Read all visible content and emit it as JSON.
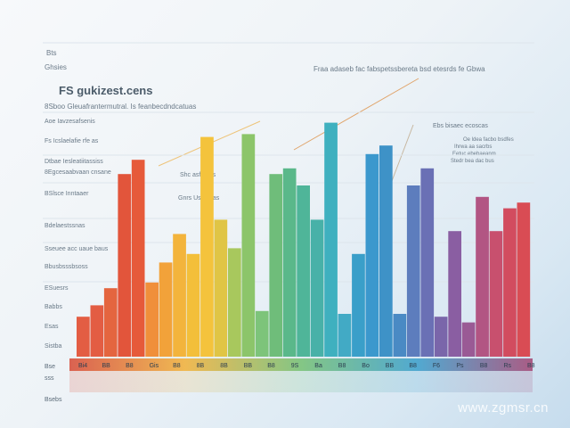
{
  "header": {
    "top_small": "Bts",
    "top_sub": "Ghsies",
    "title": "FS gukizest.cens",
    "subtitle": "8Sboo  Gleuafrantermutral. Is  feanbecdndcatuas",
    "right_line": "Fraa adaseb fac fabspetssbereta bsd etesrds fe Gbwa",
    "callout": [
      "Ebs bisaec ecoscas",
      "Oe ldea facbo bsdfes",
      "Ihrwa aa sacrbs",
      "Eetuc ebebaeanm",
      "Stedr bea dac bus"
    ],
    "mid_annot": [
      "Shc asfo sas",
      "Gnrs Usdtesas"
    ]
  },
  "legend_left": [
    "Aoe Iavzesafsenis",
    "Fs Icslaelafie rfe as",
    "Dtbae Iesleatiitassiss",
    "8Egcesaabvaan cnsane",
    "BSlsce Inntaaer",
    "Bdelaestssnas",
    "Sseuee acc uaue baus",
    "Bbusbsssbsoss",
    "ESuesrs",
    "Babbs",
    "Esas",
    "Sistba"
  ],
  "axis_small": [
    "Bse",
    "sss",
    "Bsebs"
  ],
  "chart_data": {
    "type": "bar",
    "categories": [
      "B4",
      "BB",
      "B8",
      "GB",
      "B8",
      "B4",
      "B8",
      "BB",
      "BB",
      "B8",
      "BB",
      "BB",
      "B8",
      "B8",
      "B8",
      "B8",
      "BB",
      "BB",
      "B8",
      "BB",
      "BB",
      "BB",
      "B8",
      "BB",
      "B8",
      "B8",
      "B8",
      "RB",
      "Bs",
      "RB",
      "RG",
      "RS",
      "B8"
    ],
    "tick_labels": [
      "Bi4",
      "BB",
      "B8",
      "Gis",
      "B8",
      "8B",
      "8B",
      "BB",
      "B8",
      "9S",
      "Ba",
      "B8",
      "Bo",
      "BB",
      "B8",
      "F6",
      "Ps",
      "B8",
      "Rs",
      "B8"
    ],
    "values": [
      14,
      18,
      24,
      64,
      69,
      26,
      33,
      43,
      36,
      77,
      48,
      38,
      78,
      16,
      64,
      66,
      60,
      48,
      82,
      15,
      36,
      71,
      74,
      15,
      60,
      66,
      14,
      44,
      12,
      56,
      44,
      52,
      54
    ],
    "colors": [
      "#e35d43",
      "#e35d43",
      "#e4653f",
      "#e2553b",
      "#e65a3a",
      "#f08f3a",
      "#f2a23a",
      "#f3b43c",
      "#f3bf3a",
      "#f4c33c",
      "#e0c545",
      "#a8c85d",
      "#8cc56a",
      "#7dc47a",
      "#6fbd7a",
      "#5ab88a",
      "#4fb599",
      "#48b1a8",
      "#3fb0bf",
      "#42aac5",
      "#3a9fc9",
      "#3b98cd",
      "#3e92c7",
      "#4a8ac4",
      "#5d7dbd",
      "#6a70b5",
      "#7a66aa",
      "#8a5ea2",
      "#9a5a95",
      "#b25583",
      "#c8506e",
      "#d24c5f",
      "#d94c54"
    ],
    "ylim": [
      0,
      100
    ]
  },
  "watermark": "www.zgmsr.cn"
}
